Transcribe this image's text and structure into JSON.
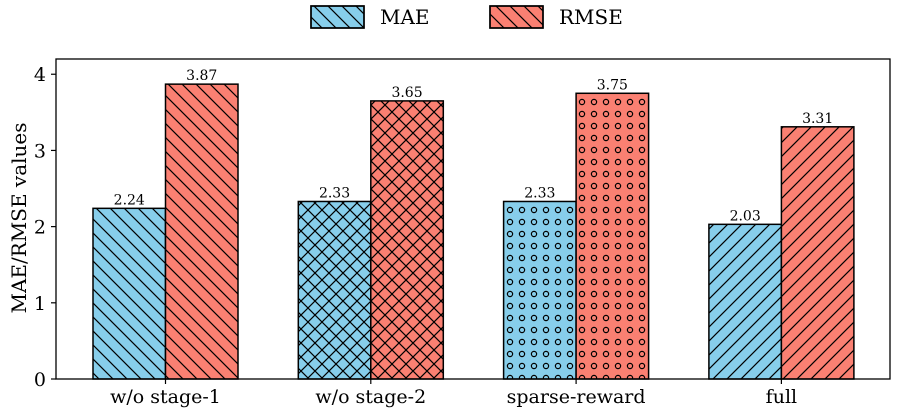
{
  "chart_data": {
    "type": "bar",
    "title": "",
    "xlabel": "",
    "ylabel": "MAE/RMSE values",
    "ylim": [
      0,
      4.2
    ],
    "yticks": [
      0,
      1,
      2,
      3,
      4
    ],
    "legend_position": "top-center",
    "categories": [
      "w/o stage-1",
      "w/o stage-2",
      "sparse-reward",
      "full"
    ],
    "series": [
      {
        "name": "MAE",
        "color": "#87CEEB",
        "values": [
          2.24,
          2.33,
          2.33,
          2.03
        ]
      },
      {
        "name": "RMSE",
        "color": "#FA8072",
        "values": [
          3.87,
          3.65,
          3.75,
          3.31
        ]
      }
    ],
    "data_labels": [
      [
        "2.24",
        "2.33",
        "2.33",
        "2.03"
      ],
      [
        "3.87",
        "3.65",
        "3.75",
        "3.31"
      ]
    ],
    "hatches": [
      "back-diagonal",
      "cross-hatch",
      "circles",
      "forward-diagonal"
    ],
    "legend_hatch": "back-diagonal"
  }
}
